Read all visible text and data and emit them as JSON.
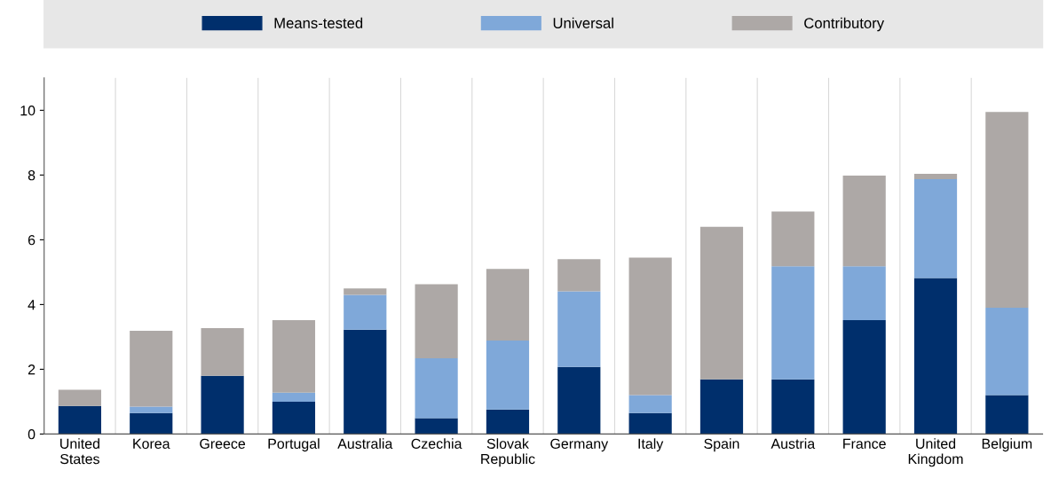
{
  "chart_data": {
    "type": "bar",
    "stacked": true,
    "categories": [
      "United\nStates",
      "Korea",
      "Greece",
      "Portugal",
      "Australia",
      "Czechia",
      "Slovak\nRepublic",
      "Germany",
      "Italy",
      "Spain",
      "Austria",
      "France",
      "United\nKingdom",
      "Belgium"
    ],
    "series": [
      {
        "name": "Means-tested",
        "color": "#002f6c",
        "values": [
          0.87,
          0.65,
          1.8,
          1.0,
          3.22,
          0.49,
          0.76,
          2.07,
          0.65,
          1.69,
          1.69,
          3.52,
          4.82,
          1.2
        ]
      },
      {
        "name": "Universal",
        "color": "#7fa8d9",
        "values": [
          0,
          0.2,
          0,
          0.28,
          1.08,
          1.85,
          2.13,
          2.34,
          0.55,
          0,
          3.49,
          1.66,
          3.05,
          2.7
        ]
      },
      {
        "name": "Contributory",
        "color": "#ada8a6",
        "values": [
          0.5,
          2.34,
          1.47,
          2.24,
          0.2,
          2.29,
          2.21,
          0.99,
          4.25,
          4.71,
          1.69,
          2.8,
          0.17,
          6.05
        ]
      }
    ],
    "ylim": [
      0,
      11
    ],
    "yticks": [
      0,
      2,
      4,
      6,
      8,
      10
    ],
    "grid": "x",
    "legend": "top"
  }
}
